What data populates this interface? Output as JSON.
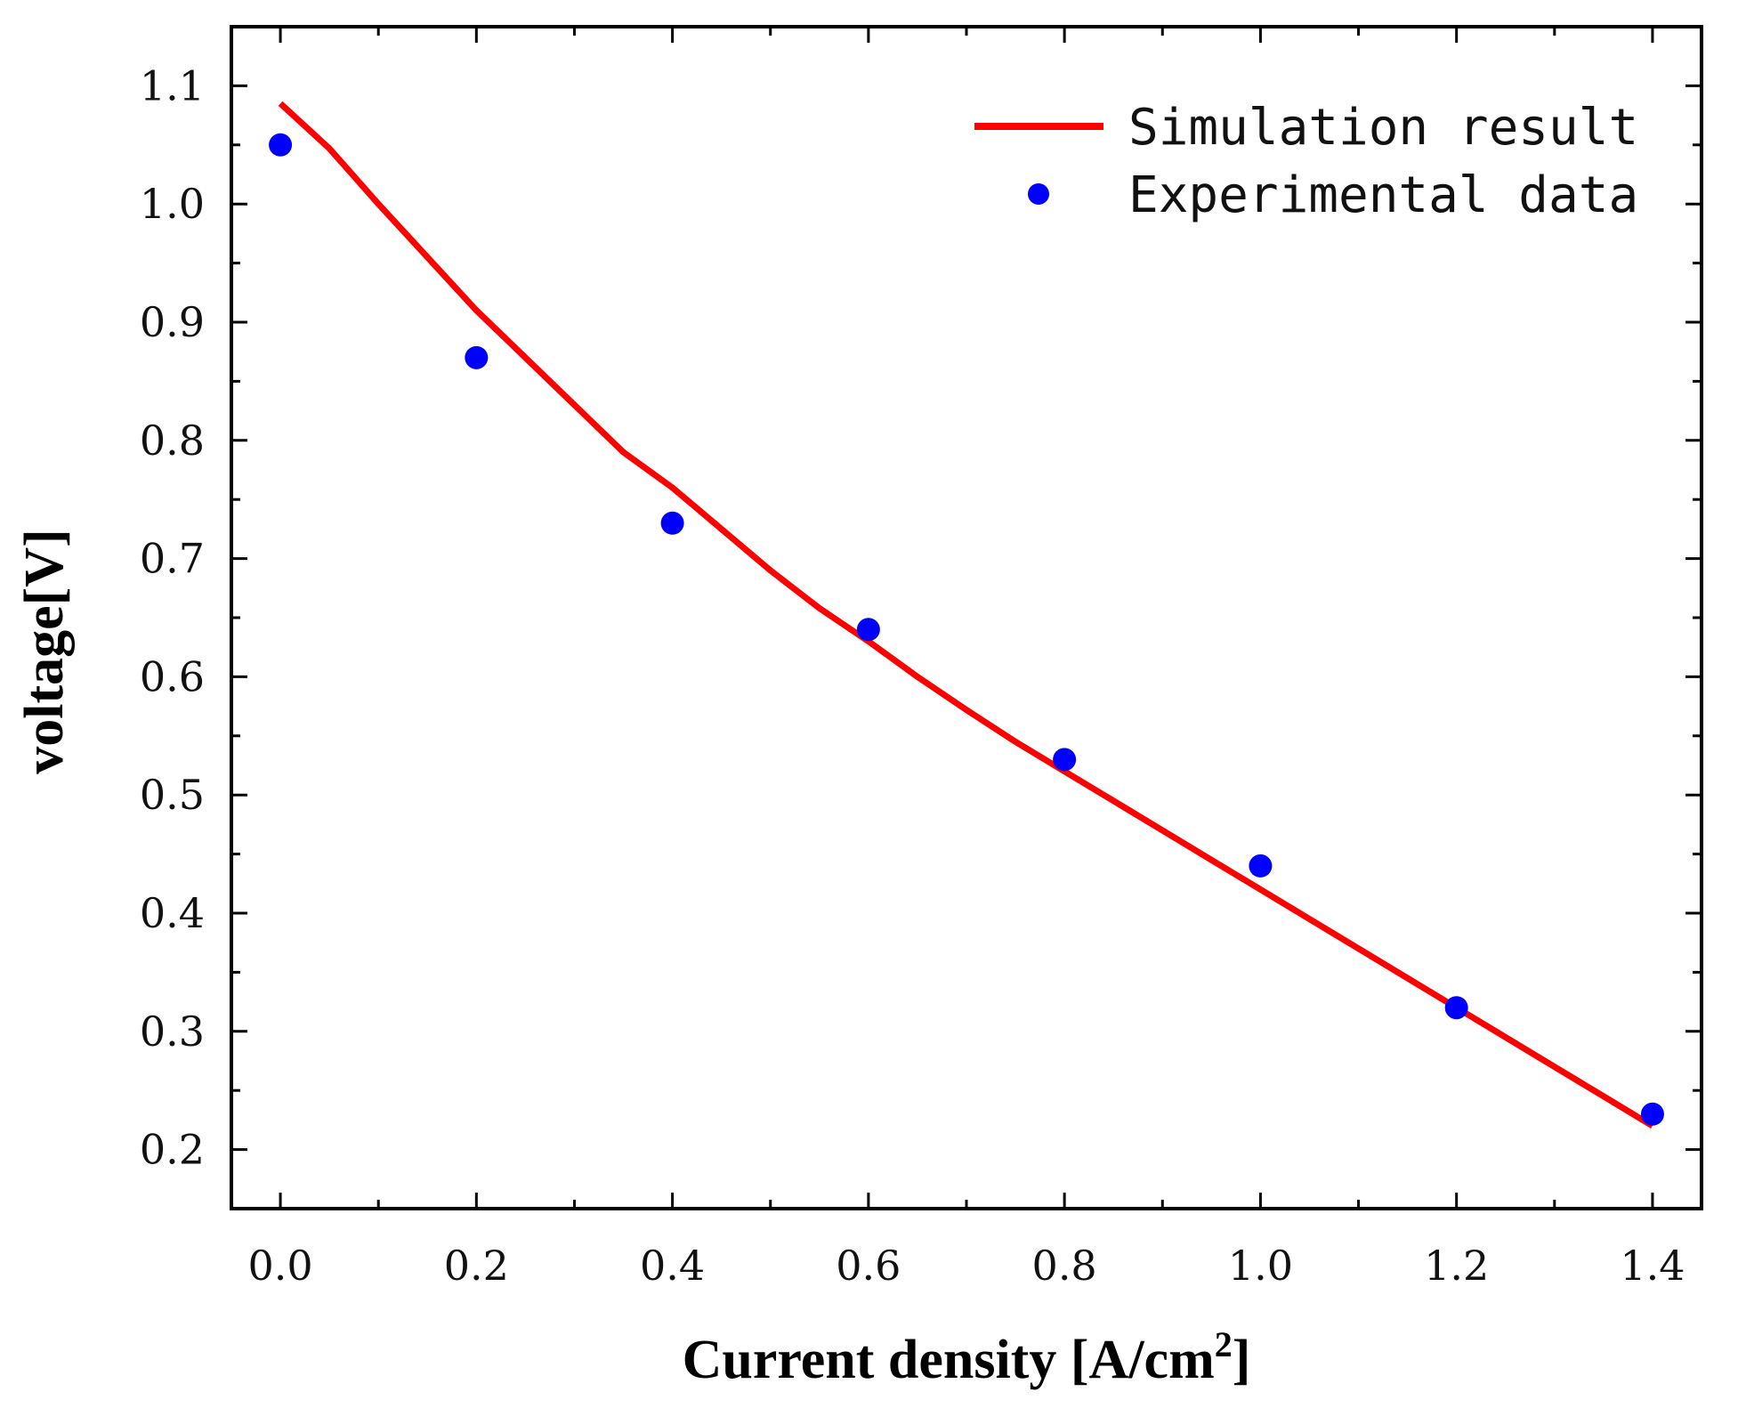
{
  "chart_data": {
    "type": "line",
    "xlabel": "Current density [A/cm",
    "xlabel_sup": "2",
    "xlabel_end": "]",
    "ylabel": "voltage[V]",
    "xlim": [
      -0.05,
      1.45
    ],
    "ylim": [
      0.15,
      1.15
    ],
    "x_ticks": [
      0.0,
      0.2,
      0.4,
      0.6,
      0.8,
      1.0,
      1.2,
      1.4
    ],
    "x_tick_labels": [
      "0.0",
      "0.2",
      "0.4",
      "0.6",
      "0.8",
      "1.0",
      "1.2",
      "1.4"
    ],
    "y_ticks": [
      0.2,
      0.3,
      0.4,
      0.5,
      0.6,
      0.7,
      0.8,
      0.9,
      1.0,
      1.1
    ],
    "y_tick_labels": [
      "0.2",
      "0.3",
      "0.4",
      "0.5",
      "0.6",
      "0.7",
      "0.8",
      "0.9",
      "1.0",
      "1.1"
    ],
    "grid": false,
    "legend_position": "top-right",
    "series": [
      {
        "name": "Simulation result",
        "style": "line",
        "color": "#ff0000",
        "x": [
          0.0,
          0.05,
          0.1,
          0.15,
          0.2,
          0.25,
          0.3,
          0.35,
          0.4,
          0.45,
          0.5,
          0.55,
          0.6,
          0.65,
          0.7,
          0.75,
          0.8,
          0.85,
          0.9,
          0.95,
          1.0,
          1.05,
          1.1,
          1.15,
          1.2,
          1.25,
          1.3,
          1.35,
          1.4
        ],
        "y": [
          1.085,
          1.047,
          1.0,
          0.955,
          0.91,
          0.87,
          0.83,
          0.79,
          0.76,
          0.725,
          0.69,
          0.658,
          0.63,
          0.6,
          0.572,
          0.545,
          0.52,
          0.495,
          0.47,
          0.445,
          0.42,
          0.395,
          0.37,
          0.345,
          0.32,
          0.295,
          0.27,
          0.245,
          0.22
        ]
      },
      {
        "name": "Experimental data",
        "style": "scatter",
        "color": "#0000ff",
        "x": [
          0.0,
          0.2,
          0.4,
          0.6,
          0.8,
          1.0,
          1.2,
          1.4
        ],
        "y": [
          1.05,
          0.87,
          0.73,
          0.64,
          0.53,
          0.44,
          0.32,
          0.23
        ]
      }
    ]
  }
}
